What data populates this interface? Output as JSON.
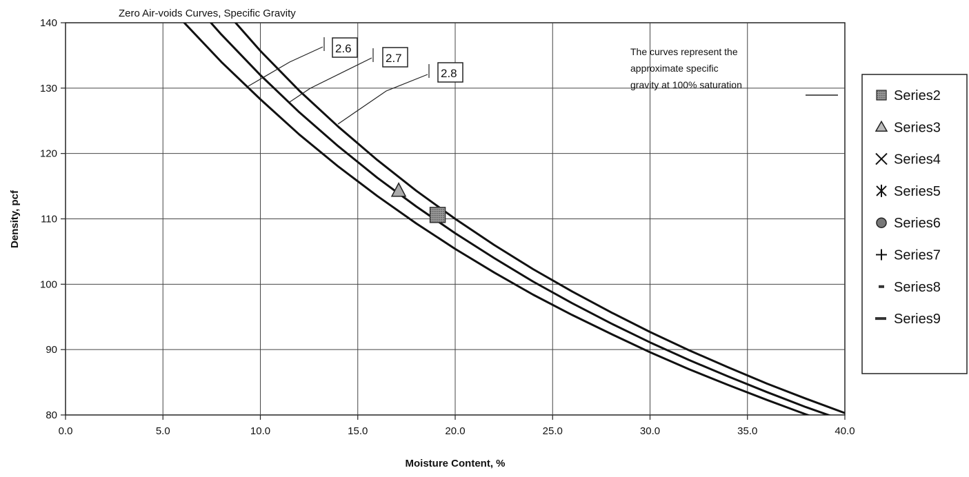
{
  "chart_data": {
    "type": "line",
    "title": "Zero Air-voids Curves, Specific Gravity",
    "xlabel": "Moisture Content, %",
    "ylabel": "Density, pcf",
    "xlim": [
      0,
      40
    ],
    "ylim": [
      80,
      140
    ],
    "x_ticks": [
      "0.0",
      "5.0",
      "10.0",
      "15.0",
      "20.0",
      "25.0",
      "30.0",
      "35.0",
      "40.0"
    ],
    "y_ticks": [
      "80",
      "90",
      "100",
      "110",
      "120",
      "130",
      "140"
    ],
    "grid": true,
    "legend_position": "right",
    "note": [
      "The curves represent the",
      "approximate specific",
      "gravity at 100% saturation"
    ],
    "series": [
      {
        "label": "2.6",
        "gs": 2.6,
        "x": [
          6.0,
          8.0,
          10.0,
          12.0,
          14.0,
          16.0,
          18.0,
          20.0,
          22.0,
          24.0,
          26.0,
          28.0,
          30.0,
          32.0,
          34.0,
          36.0,
          38.0,
          40.0
        ],
        "y": [
          140.3,
          134.0,
          128.3,
          122.9,
          118.0,
          113.5,
          109.3,
          105.4,
          101.8,
          98.4,
          95.3,
          92.4,
          89.6,
          87.0,
          84.6,
          82.3,
          80.1,
          78.0
        ]
      },
      {
        "label": "2.7",
        "gs": 2.7,
        "x": [
          7.4,
          8.0,
          10.0,
          12.0,
          14.0,
          16.0,
          18.0,
          20.0,
          22.0,
          24.0,
          26.0,
          28.0,
          30.0,
          32.0,
          34.0,
          36.0,
          38.0,
          40.0
        ],
        "y": [
          140.2,
          138.2,
          132.0,
          126.3,
          121.1,
          116.3,
          111.9,
          107.8,
          104.0,
          100.4,
          97.1,
          94.0,
          91.1,
          88.4,
          85.9,
          83.5,
          81.2,
          79.1
        ]
      },
      {
        "label": "2.8",
        "gs": 2.8,
        "x": [
          8.7,
          10.0,
          12.0,
          14.0,
          16.0,
          18.0,
          20.0,
          22.0,
          24.0,
          26.0,
          28.0,
          30.0,
          32.0,
          34.0,
          36.0,
          38.0,
          40.0
        ],
        "y": [
          140.1,
          135.7,
          129.6,
          124.1,
          119.0,
          114.3,
          110.0,
          106.0,
          102.3,
          98.9,
          95.7,
          92.7,
          89.9,
          87.3,
          84.8,
          82.5,
          80.3
        ]
      }
    ],
    "points": [
      {
        "series": "Series3",
        "marker": "triangle",
        "x": 17.1,
        "y": 114.3
      },
      {
        "series": "Series2",
        "marker": "square",
        "x": 19.1,
        "y": 110.6
      }
    ],
    "legend": [
      {
        "marker": "square",
        "label": "Series2"
      },
      {
        "marker": "triangle",
        "label": "Series3"
      },
      {
        "marker": "x",
        "label": "Series4"
      },
      {
        "marker": "star",
        "label": "Series5"
      },
      {
        "marker": "circle",
        "label": "Series6"
      },
      {
        "marker": "plus",
        "label": "Series7"
      },
      {
        "marker": "short-dash",
        "label": "Series8"
      },
      {
        "marker": "long-dash",
        "label": "Series9"
      }
    ]
  }
}
